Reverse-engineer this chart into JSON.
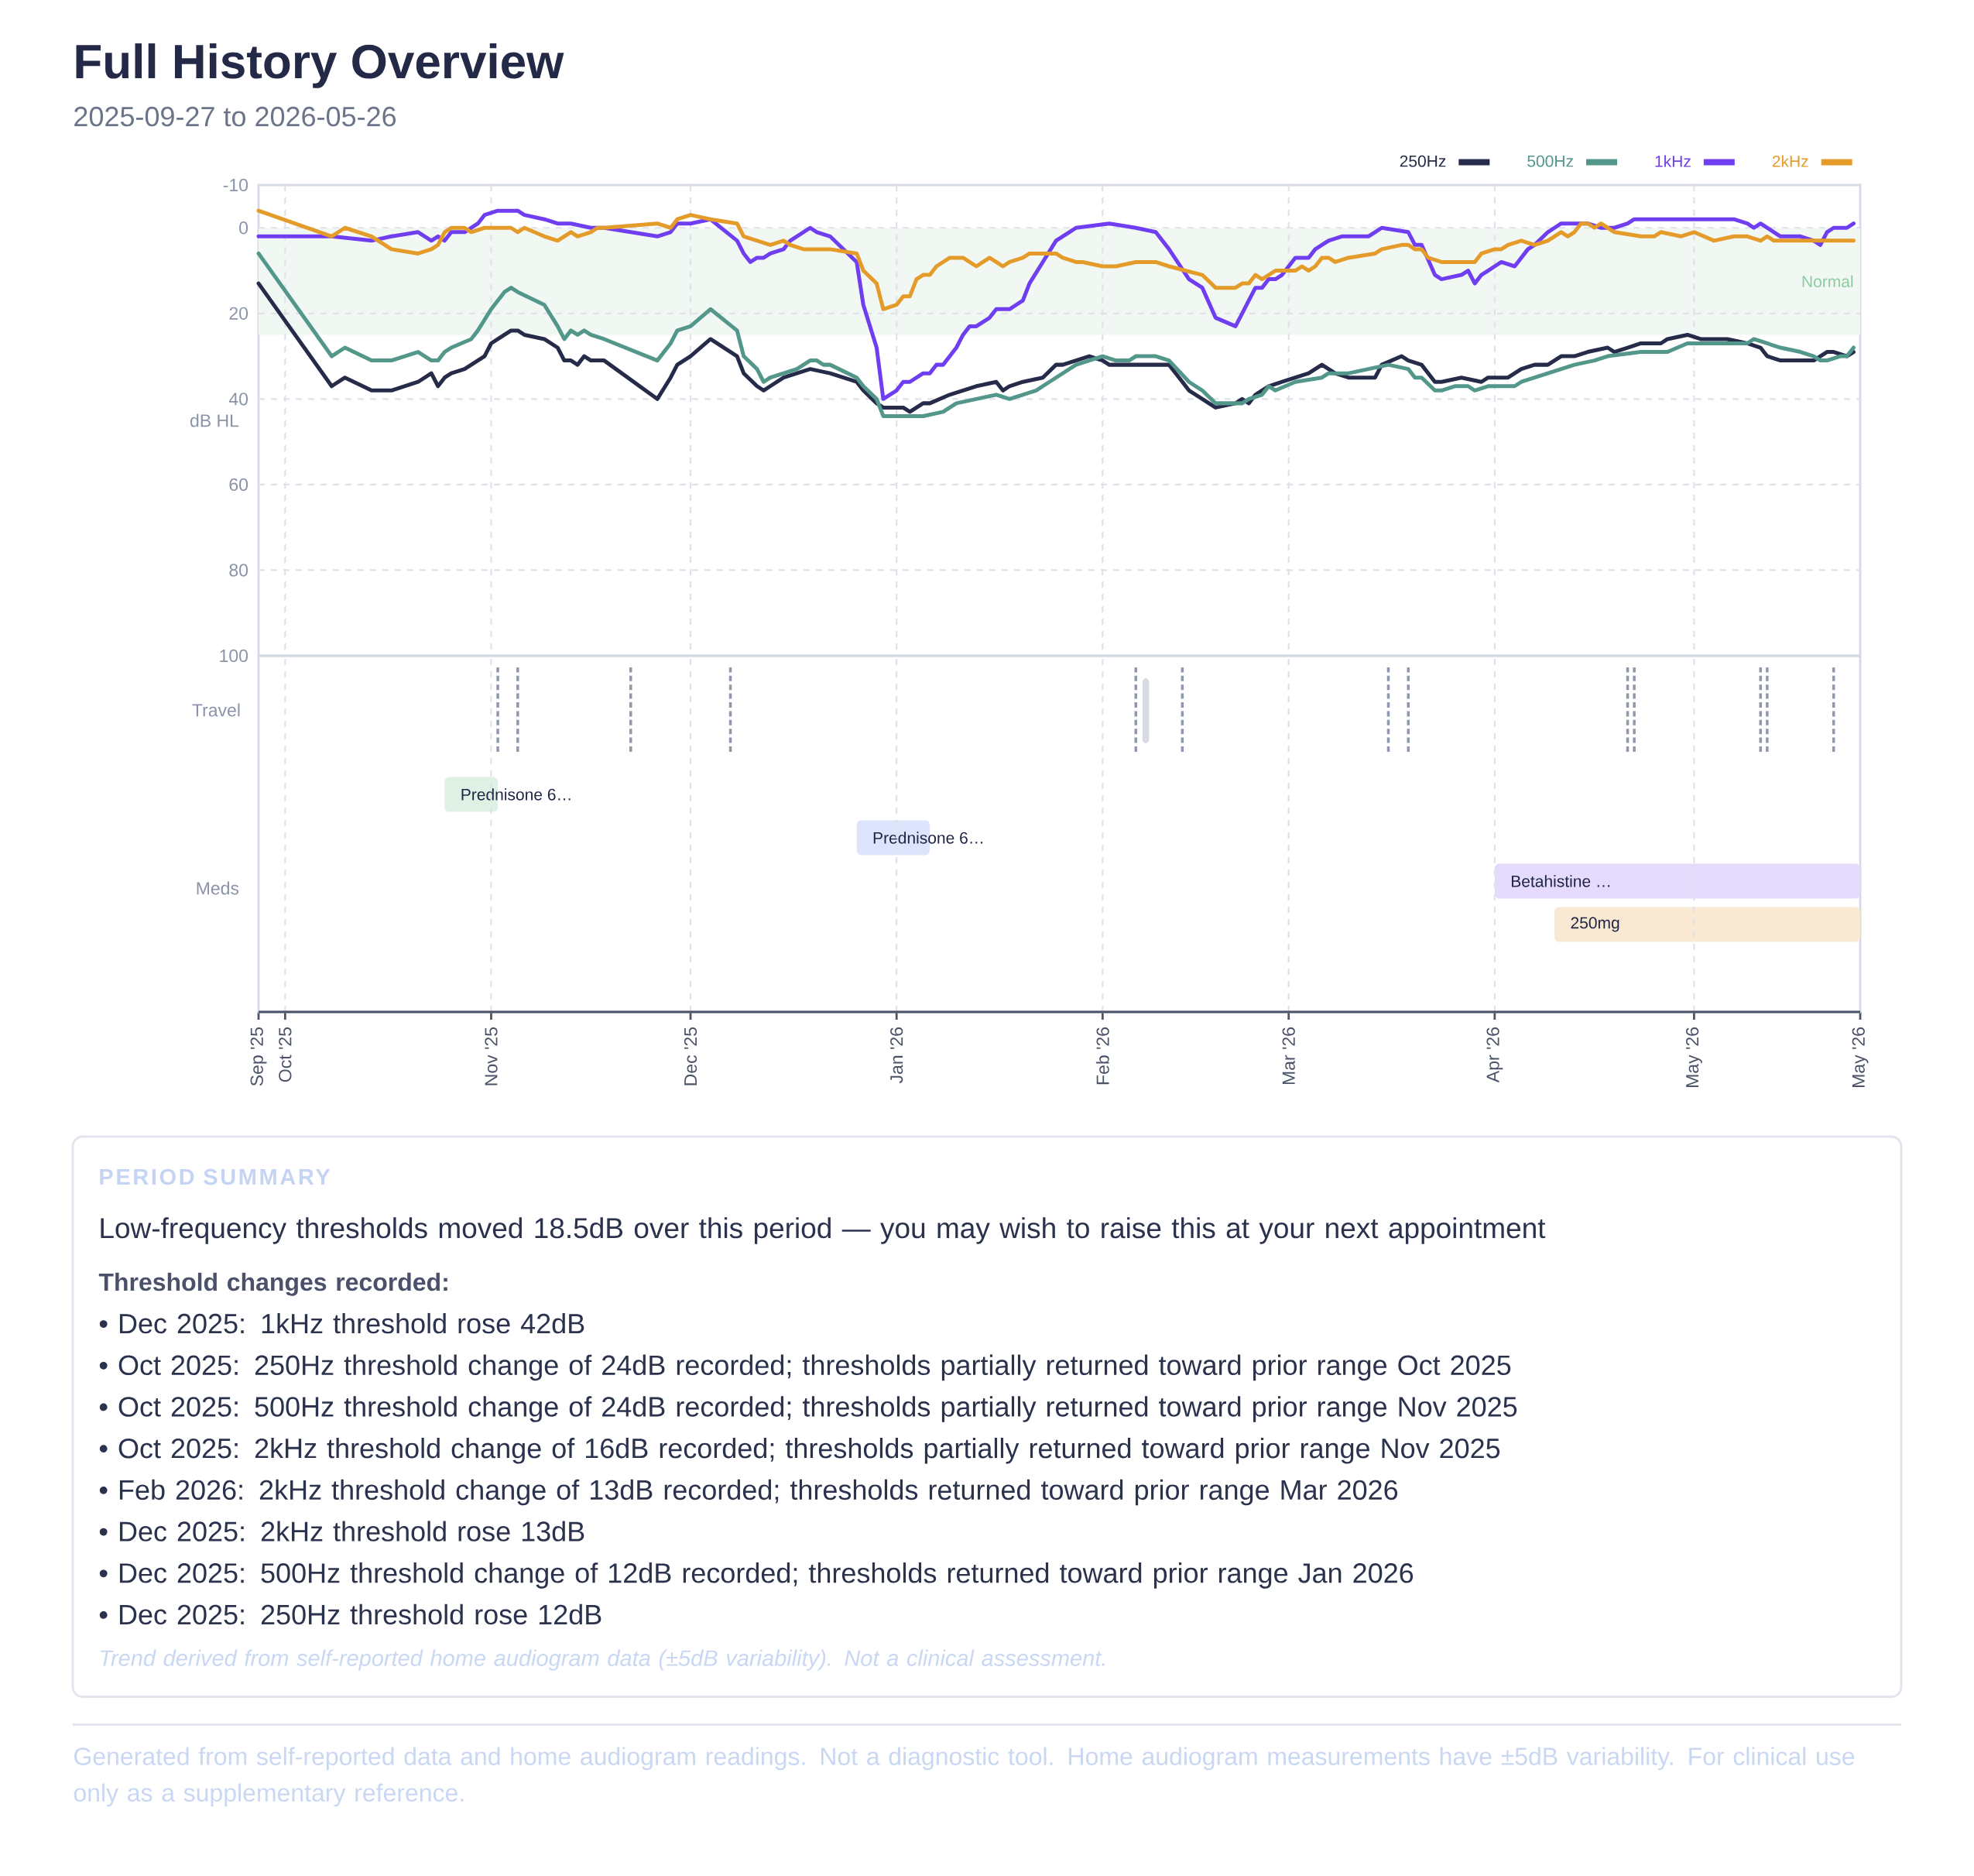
{
  "chart_data": [
    {
      "type": "line",
      "title": "Full History Overview",
      "subtitle": "2025-09-27 to 2026-05-26",
      "ylabel": "dB HL",
      "xlim": [
        "2025-09-27",
        "2026-05-26"
      ],
      "xticks": [
        {
          "value": "2025-09-27",
          "label": null
        },
        {
          "value": "2025-10-01",
          "label": null
        },
        {
          "value": "2025-11-01",
          "label": null
        },
        {
          "value": "2025-12-01",
          "label": null
        },
        {
          "value": "2026-01-01",
          "label": null
        },
        {
          "value": "2026-02-01",
          "label": null
        },
        {
          "value": "2026-03-01",
          "label": null
        },
        {
          "value": "2026-04-01",
          "label": null
        },
        {
          "value": "2026-05-01",
          "label": null
        },
        {
          "value": "2026-05-26",
          "label": null
        }
      ],
      "ylim": [
        100,
        -10
      ],
      "yticks": [
        -10,
        0,
        20,
        40,
        60,
        80,
        100
      ],
      "tick_labels": "y",
      "grid": true,
      "legend": "top right",
      "bands": [
        {
          "axis": "y",
          "from": 0,
          "to": 25,
          "label": "Normal",
          "color": "#f1f8f4"
        }
      ],
      "series": [
        {
          "name": "250Hz",
          "color": "#252b48",
          "x": [
            "2025-09-27",
            "2025-10-08",
            "2025-10-10",
            "2025-10-14",
            "2025-10-17",
            "2025-10-21",
            "2025-10-23",
            "2025-10-24",
            "2025-10-25",
            "2025-10-26",
            "2025-10-28",
            "2025-10-29",
            "2025-10-30",
            "2025-10-31",
            "2025-11-01",
            "2025-11-02",
            "2025-11-04",
            "2025-11-05",
            "2025-11-06",
            "2025-11-09",
            "2025-11-11",
            "2025-11-12",
            "2025-11-13",
            "2025-11-14",
            "2025-11-15",
            "2025-11-16",
            "2025-11-18",
            "2025-11-26",
            "2025-11-28",
            "2025-11-29",
            "2025-12-01",
            "2025-12-04",
            "2025-12-08",
            "2025-12-09",
            "2025-12-11",
            "2025-12-12",
            "2025-12-13",
            "2025-12-15",
            "2025-12-17",
            "2025-12-19",
            "2025-12-22",
            "2025-12-26",
            "2025-12-27",
            "2025-12-29",
            "2025-12-30",
            "2026-01-02",
            "2026-01-03",
            "2026-01-05",
            "2026-01-06",
            "2026-01-09",
            "2026-01-11",
            "2026-01-13",
            "2026-01-16",
            "2026-01-17",
            "2026-01-18",
            "2026-01-20",
            "2026-01-23",
            "2026-01-25",
            "2026-01-26",
            "2026-01-28",
            "2026-01-30",
            "2026-02-01",
            "2026-02-02",
            "2026-02-05",
            "2026-02-09",
            "2026-02-11",
            "2026-02-14",
            "2026-02-16",
            "2026-02-18",
            "2026-02-21",
            "2026-02-22",
            "2026-02-23",
            "2026-02-24",
            "2026-02-25",
            "2026-02-26",
            "2026-02-28",
            "2026-03-02",
            "2026-03-04",
            "2026-03-06",
            "2026-03-08",
            "2026-03-10",
            "2026-03-14",
            "2026-03-15",
            "2026-03-18",
            "2026-03-19",
            "2026-03-21",
            "2026-03-23",
            "2026-03-24",
            "2026-03-27",
            "2026-03-30",
            "2026-03-31",
            "2026-04-03",
            "2026-04-05",
            "2026-04-07",
            "2026-04-09",
            "2026-04-11",
            "2026-04-13",
            "2026-04-15",
            "2026-04-18",
            "2026-04-19",
            "2026-04-21",
            "2026-04-23",
            "2026-04-26",
            "2026-04-27",
            "2026-04-30",
            "2026-05-02",
            "2026-05-06",
            "2026-05-09",
            "2026-05-11",
            "2026-05-12",
            "2026-05-14",
            "2026-05-19",
            "2026-05-21",
            "2026-05-22",
            "2026-05-24",
            "2026-05-25"
          ],
          "values": [
            13,
            37,
            35,
            38,
            38,
            36,
            34,
            37,
            35,
            34,
            33,
            32,
            31,
            30,
            27,
            26,
            24,
            24,
            25,
            26,
            28,
            31,
            31,
            32,
            30,
            31,
            31,
            40,
            35,
            32,
            30,
            26,
            30,
            34,
            37,
            38,
            37,
            35,
            34,
            33,
            34,
            36,
            38,
            41,
            42,
            42,
            43,
            41,
            41,
            39,
            38,
            37,
            36,
            38,
            37,
            36,
            35,
            32,
            32,
            31,
            30,
            31,
            32,
            32,
            32,
            32,
            38,
            40,
            42,
            41,
            40,
            41,
            39,
            38,
            37,
            36,
            35,
            34,
            32,
            34,
            35,
            35,
            32,
            30,
            31,
            32,
            36,
            36,
            35,
            36,
            35,
            35,
            33,
            32,
            32,
            30,
            30,
            29,
            28,
            29,
            28,
            27,
            27,
            26,
            25,
            26,
            26,
            27,
            28,
            30,
            31,
            31,
            29,
            29,
            30,
            29
          ]
        },
        {
          "name": "500Hz",
          "color": "#52978a",
          "x": [
            "2025-09-27",
            "2025-10-08",
            "2025-10-10",
            "2025-10-14",
            "2025-10-17",
            "2025-10-21",
            "2025-10-23",
            "2025-10-24",
            "2025-10-25",
            "2025-10-26",
            "2025-10-29",
            "2025-10-30",
            "2025-11-01",
            "2025-11-02",
            "2025-11-03",
            "2025-11-04",
            "2025-11-05",
            "2025-11-09",
            "2025-11-11",
            "2025-11-12",
            "2025-11-13",
            "2025-11-14",
            "2025-11-15",
            "2025-11-16",
            "2025-11-18",
            "2025-11-26",
            "2025-11-28",
            "2025-11-29",
            "2025-12-01",
            "2025-12-04",
            "2025-12-08",
            "2025-12-09",
            "2025-12-11",
            "2025-12-12",
            "2025-12-13",
            "2025-12-15",
            "2025-12-17",
            "2025-12-19",
            "2025-12-20",
            "2025-12-21",
            "2025-12-22",
            "2025-12-26",
            "2025-12-27",
            "2025-12-29",
            "2025-12-30",
            "2026-01-02",
            "2026-01-05",
            "2026-01-08",
            "2026-01-10",
            "2026-01-13",
            "2026-01-16",
            "2026-01-18",
            "2026-01-20",
            "2026-01-22",
            "2026-01-24",
            "2026-01-26",
            "2026-01-28",
            "2026-01-30",
            "2026-02-01",
            "2026-02-03",
            "2026-02-05",
            "2026-02-06",
            "2026-02-09",
            "2026-02-11",
            "2026-02-14",
            "2026-02-16",
            "2026-02-18",
            "2026-02-22",
            "2026-02-23",
            "2026-02-25",
            "2026-02-26",
            "2026-02-27",
            "2026-03-02",
            "2026-03-06",
            "2026-03-07",
            "2026-03-10",
            "2026-03-13",
            "2026-03-16",
            "2026-03-19",
            "2026-03-20",
            "2026-03-21",
            "2026-03-23",
            "2026-03-24",
            "2026-03-26",
            "2026-03-28",
            "2026-03-29",
            "2026-03-31",
            "2026-04-04",
            "2026-04-05",
            "2026-04-07",
            "2026-04-09",
            "2026-04-11",
            "2026-04-13",
            "2026-04-16",
            "2026-04-18",
            "2026-04-23",
            "2026-04-27",
            "2026-04-30",
            "2026-05-05",
            "2026-05-09",
            "2026-05-10",
            "2026-05-12",
            "2026-05-14",
            "2026-05-17",
            "2026-05-19",
            "2026-05-20",
            "2026-05-21",
            "2026-05-23",
            "2026-05-24",
            "2026-05-25"
          ],
          "values": [
            6,
            30,
            28,
            31,
            31,
            29,
            31,
            31,
            29,
            28,
            26,
            24,
            19,
            17,
            15,
            14,
            15,
            18,
            23,
            26,
            24,
            25,
            24,
            25,
            26,
            31,
            27,
            24,
            23,
            19,
            24,
            30,
            33,
            36,
            35,
            34,
            33,
            31,
            31,
            32,
            32,
            35,
            37,
            40,
            44,
            44,
            44,
            43,
            41,
            40,
            39,
            40,
            39,
            38,
            36,
            34,
            32,
            31,
            30,
            31,
            31,
            30,
            30,
            31,
            36,
            38,
            41,
            41,
            40,
            39,
            37,
            38,
            36,
            35,
            34,
            34,
            33,
            32,
            33,
            35,
            35,
            38,
            38,
            37,
            37,
            38,
            37,
            37,
            36,
            35,
            34,
            33,
            32,
            31,
            30,
            29,
            29,
            27,
            27,
            27,
            26,
            27,
            28,
            29,
            30,
            31,
            31,
            30,
            30,
            28
          ]
        },
        {
          "name": "1kHz",
          "color": "#6f3ef0",
          "x": [
            "2025-09-27",
            "2025-10-08",
            "2025-10-14",
            "2025-10-17",
            "2025-10-21",
            "2025-10-23",
            "2025-10-24",
            "2025-10-25",
            "2025-10-26",
            "2025-10-28",
            "2025-10-30",
            "2025-10-31",
            "2025-11-02",
            "2025-11-04",
            "2025-11-05",
            "2025-11-06",
            "2025-11-09",
            "2025-11-11",
            "2025-11-13",
            "2025-11-16",
            "2025-11-18",
            "2025-11-26",
            "2025-11-28",
            "2025-11-29",
            "2025-12-01",
            "2025-12-04",
            "2025-12-08",
            "2025-12-09",
            "2025-12-10",
            "2025-12-11",
            "2025-12-12",
            "2025-12-13",
            "2025-12-15",
            "2025-12-16",
            "2025-12-17",
            "2025-12-19",
            "2025-12-20",
            "2025-12-22",
            "2025-12-26",
            "2025-12-27",
            "2025-12-29",
            "2025-12-30",
            "2026-01-01",
            "2026-01-02",
            "2026-01-03",
            "2026-01-05",
            "2026-01-06",
            "2026-01-07",
            "2026-01-08",
            "2026-01-10",
            "2026-01-11",
            "2026-01-12",
            "2026-01-13",
            "2026-01-15",
            "2026-01-16",
            "2026-01-18",
            "2026-01-19",
            "2026-01-20",
            "2026-01-21",
            "2026-01-23",
            "2026-01-25",
            "2026-01-26",
            "2026-01-27",
            "2026-01-28",
            "2026-02-02",
            "2026-02-06",
            "2026-02-09",
            "2026-02-11",
            "2026-02-14",
            "2026-02-16",
            "2026-02-18",
            "2026-02-21",
            "2026-02-22",
            "2026-02-23",
            "2026-02-24",
            "2026-02-25",
            "2026-02-26",
            "2026-02-27",
            "2026-02-28",
            "2026-03-02",
            "2026-03-04",
            "2026-03-05",
            "2026-03-06",
            "2026-03-07",
            "2026-03-09",
            "2026-03-13",
            "2026-03-14",
            "2026-03-15",
            "2026-03-19",
            "2026-03-20",
            "2026-03-21",
            "2026-03-23",
            "2026-03-24",
            "2026-03-27",
            "2026-03-28",
            "2026-03-29",
            "2026-03-30",
            "2026-03-31",
            "2026-04-01",
            "2026-04-02",
            "2026-04-04",
            "2026-04-06",
            "2026-04-07",
            "2026-04-09",
            "2026-04-10",
            "2026-04-11",
            "2026-04-15",
            "2026-04-17",
            "2026-04-19",
            "2026-04-21",
            "2026-04-22",
            "2026-05-07",
            "2026-05-09",
            "2026-05-10",
            "2026-05-11",
            "2026-05-13",
            "2026-05-14",
            "2026-05-17",
            "2026-05-19",
            "2026-05-20",
            "2026-05-21",
            "2026-05-22",
            "2026-05-24",
            "2026-05-25"
          ],
          "values": [
            2,
            2,
            3,
            2,
            1,
            3,
            2,
            3,
            1,
            1,
            -1,
            -3,
            -4,
            -4,
            -4,
            -3,
            -2,
            -1,
            -1,
            0,
            0,
            2,
            1,
            -1,
            -1,
            -2,
            3,
            6,
            8,
            7,
            7,
            6,
            5,
            3,
            2,
            0,
            1,
            2,
            8,
            18,
            28,
            40,
            38,
            36,
            36,
            34,
            34,
            32,
            32,
            28,
            25,
            23,
            23,
            21,
            19,
            19,
            18,
            17,
            13,
            8,
            3,
            2,
            1,
            0,
            -1,
            0,
            1,
            5,
            12,
            14,
            21,
            23,
            20,
            17,
            14,
            14,
            12,
            12,
            11,
            7,
            7,
            5,
            4,
            3,
            2,
            2,
            1,
            0,
            1,
            4,
            4,
            11,
            12,
            11,
            10,
            13,
            11,
            10,
            9,
            8,
            9,
            5,
            4,
            1,
            0,
            -1,
            -1,
            0,
            0,
            -1,
            -2,
            -2,
            -1,
            0,
            -1,
            1,
            2,
            2,
            3,
            4,
            1,
            0,
            0,
            -1
          ]
        },
        {
          "name": "2kHz",
          "color": "#e49b2a",
          "x": [
            "2025-09-27",
            "2025-10-08",
            "2025-10-10",
            "2025-10-14",
            "2025-10-17",
            "2025-10-21",
            "2025-10-23",
            "2025-10-24",
            "2025-10-25",
            "2025-10-26",
            "2025-10-28",
            "2025-10-29",
            "2025-10-31",
            "2025-11-02",
            "2025-11-04",
            "2025-11-05",
            "2025-11-06",
            "2025-11-09",
            "2025-11-11",
            "2025-11-12",
            "2025-11-13",
            "2025-11-14",
            "2025-11-16",
            "2025-11-17",
            "2025-11-18",
            "2025-11-26",
            "2025-11-28",
            "2025-11-29",
            "2025-12-01",
            "2025-12-04",
            "2025-12-08",
            "2025-12-09",
            "2025-12-11",
            "2025-12-13",
            "2025-12-15",
            "2025-12-16",
            "2025-12-18",
            "2025-12-22",
            "2025-12-26",
            "2025-12-27",
            "2025-12-29",
            "2025-12-30",
            "2026-01-01",
            "2026-01-02",
            "2026-01-03",
            "2026-01-04",
            "2026-01-05",
            "2026-01-06",
            "2026-01-07",
            "2026-01-09",
            "2026-01-11",
            "2026-01-13",
            "2026-01-14",
            "2026-01-15",
            "2026-01-16",
            "2026-01-17",
            "2026-01-18",
            "2026-01-20",
            "2026-01-21",
            "2026-01-25",
            "2026-01-26",
            "2026-01-28",
            "2026-01-29",
            "2026-02-01",
            "2026-02-03",
            "2026-02-06",
            "2026-02-09",
            "2026-02-11",
            "2026-02-16",
            "2026-02-18",
            "2026-02-21",
            "2026-02-22",
            "2026-02-23",
            "2026-02-24",
            "2026-02-25",
            "2026-02-27",
            "2026-03-02",
            "2026-03-03",
            "2026-03-04",
            "2026-03-05",
            "2026-03-06",
            "2026-03-07",
            "2026-03-08",
            "2026-03-10",
            "2026-03-14",
            "2026-03-15",
            "2026-03-18",
            "2026-03-19",
            "2026-03-20",
            "2026-03-21",
            "2026-03-22",
            "2026-03-24",
            "2026-03-28",
            "2026-03-29",
            "2026-03-30",
            "2026-04-01",
            "2026-04-02",
            "2026-04-03",
            "2026-04-05",
            "2026-04-07",
            "2026-04-09",
            "2026-04-11",
            "2026-04-12",
            "2026-04-13",
            "2026-04-14",
            "2026-04-15",
            "2026-04-16",
            "2026-04-17",
            "2026-04-19",
            "2026-04-23",
            "2026-04-25",
            "2026-04-26",
            "2026-04-29",
            "2026-05-01",
            "2026-05-04",
            "2026-05-07",
            "2026-05-09",
            "2026-05-11",
            "2026-05-12",
            "2026-05-13",
            "2026-05-19",
            "2026-05-20",
            "2026-05-25"
          ],
          "values": [
            -4,
            2,
            0,
            2,
            5,
            6,
            5,
            4,
            1,
            0,
            0,
            1,
            0,
            0,
            0,
            1,
            0,
            2,
            3,
            2,
            1,
            2,
            1,
            0,
            0,
            -1,
            0,
            -2,
            -3,
            -2,
            -1,
            2,
            3,
            4,
            3,
            4,
            5,
            5,
            6,
            10,
            13,
            19,
            18,
            16,
            16,
            12,
            11,
            11,
            9,
            7,
            7,
            9,
            8,
            7,
            8,
            9,
            8,
            7,
            6,
            6,
            7,
            8,
            8,
            9,
            9,
            8,
            8,
            9,
            11,
            14,
            14,
            13,
            13,
            11,
            12,
            10,
            10,
            9,
            10,
            9,
            7,
            7,
            8,
            7,
            6,
            5,
            4,
            4,
            5,
            5,
            7,
            8,
            8,
            8,
            6,
            5,
            5,
            4,
            3,
            4,
            3,
            1,
            2,
            1,
            -1,
            -1,
            0,
            -1,
            1,
            2,
            2,
            1,
            2,
            1,
            3,
            2,
            2,
            3,
            2,
            3,
            3,
            3,
            3
          ]
        }
      ]
    },
    {
      "type": "bar",
      "orientation": "horizontal",
      "categories": [
        "Travel",
        null,
        null,
        null,
        null
      ],
      "values": [
        null,
        null,
        null,
        null,
        null
      ],
      "ylabel": "Meds",
      "xlim": [
        "2025-09-27",
        "2026-05-26"
      ],
      "xticks": [
        {
          "value": "2025-09-27",
          "label": "Sep '25"
        },
        {
          "value": "2025-10-01",
          "label": "Oct '25"
        },
        {
          "value": "2025-11-01",
          "label": "Nov '25"
        },
        {
          "value": "2025-12-01",
          "label": "Dec '25"
        },
        {
          "value": "2026-01-01",
          "label": "Jan '26"
        },
        {
          "value": "2026-02-01",
          "label": "Feb '26"
        },
        {
          "value": "2026-03-01",
          "label": "Mar '26"
        },
        {
          "value": "2026-04-01",
          "label": "Apr '26"
        },
        {
          "value": "2026-05-01",
          "label": "May '26"
        },
        {
          "value": "2026-05-26",
          "label": "May '26"
        }
      ],
      "grid": "x",
      "ref_lines": [
        {
          "axis": "x",
          "value": "2025-11-02",
          "color": "#8f98ac",
          "line_style": "dashed"
        },
        {
          "axis": "x",
          "value": "2025-11-05",
          "color": "#8f98ac",
          "line_style": "dashed"
        },
        {
          "axis": "x",
          "value": "2025-11-22",
          "color": "#8f98ac",
          "line_style": "dashed"
        },
        {
          "axis": "x",
          "value": "2025-12-07",
          "color": "#8f98ac",
          "line_style": "dashed"
        },
        {
          "axis": "x",
          "value": "2026-02-06",
          "color": "#8f98ac",
          "line_style": "dashed"
        },
        {
          "axis": "x",
          "value": "2026-02-13",
          "color": "#8f98ac",
          "line_style": "dashed"
        },
        {
          "axis": "x",
          "value": "2026-03-16",
          "color": "#8f98ac",
          "line_style": "dashed"
        },
        {
          "axis": "x",
          "value": "2026-03-19",
          "color": "#8f98ac",
          "line_style": "dashed"
        },
        {
          "axis": "x",
          "value": "2026-04-21",
          "color": "#8f98ac",
          "line_style": "dashed"
        },
        {
          "axis": "x",
          "value": "2026-04-22",
          "color": "#8f98ac",
          "line_style": "dashed"
        },
        {
          "axis": "x",
          "value": "2026-05-11",
          "color": "#8f98ac",
          "line_style": "dashed"
        },
        {
          "axis": "x",
          "value": "2026-05-12",
          "color": "#8f98ac",
          "line_style": "dashed"
        },
        {
          "axis": "x",
          "value": "2026-05-22",
          "color": "#8f98ac",
          "line_style": "dashed"
        }
      ],
      "bands": [
        {
          "axis": "x",
          "from": "2026-02-07",
          "to": "2026-02-08",
          "color": "#d8dbe2"
        },
        {
          "axis": "x",
          "from": "2025-10-25",
          "to": "2025-11-02",
          "label": "Prednisone 6…",
          "color": "#dff1e5"
        },
        {
          "axis": "x",
          "from": "2025-12-26",
          "to": "2026-01-06",
          "label": "Prednisone 6…",
          "color": "#dce5fc"
        },
        {
          "axis": "x",
          "from": "2026-04-01",
          "to": "2026-05-26",
          "label": "Betahistine …",
          "color": "#e5dbfd"
        },
        {
          "axis": "x",
          "from": "2026-04-10",
          "to": "2026-05-26",
          "label": "250mg",
          "color": "#f9e9d3"
        }
      ]
    },
    {
      "type": "other",
      "title": "PERIOD SUMMARY",
      "subtitle": "Low-frequency thresholds moved 18.5dB over this period — you may wish to raise this at your next appointment",
      "annotations": [
        "Threshold changes recorded:",
        "• Dec 2025: 1kHz threshold rose 42dB",
        "• Oct 2025: 250Hz threshold change of 24dB recorded; thresholds partially returned toward prior range Oct 2025",
        "• Oct 2025: 500Hz threshold change of 24dB recorded; thresholds partially returned toward prior range Nov 2025",
        "• Oct 2025: 2kHz threshold change of 16dB recorded; thresholds partially returned toward prior range Nov 2025",
        "• Feb 2026: 2kHz threshold change of 13dB recorded; thresholds returned toward prior range Mar 2026",
        "• Dec 2025: 2kHz threshold rose 13dB",
        "• Dec 2025: 500Hz threshold change of 12dB recorded; thresholds returned toward prior range Jan 2026",
        "• Dec 2025: 250Hz threshold rose 12dB",
        "Trend derived from self-reported home audiogram data (±5dB variability). Not a clinical assessment.",
        "Generated from self-reported data and home audiogram readings. Not a diagnostic tool. Home audiogram measurements have ±5dB variability. For clinical use only as a supplementary reference."
      ]
    }
  ]
}
